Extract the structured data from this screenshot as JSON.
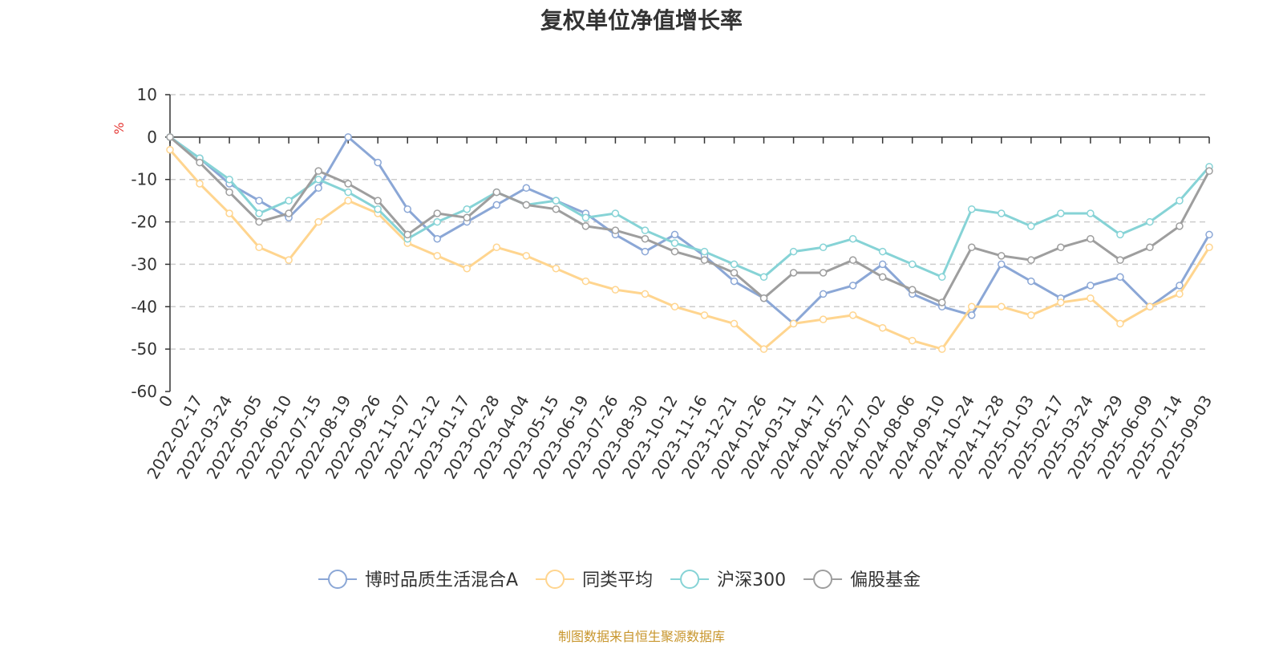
{
  "chart_data": {
    "type": "line",
    "title": "复权单位净值增长率",
    "ylabel": "%",
    "ylim": [
      -60,
      10
    ],
    "yticks": [
      10,
      0,
      -10,
      -20,
      -30,
      -40,
      -50,
      -60
    ],
    "xticks": [
      "0",
      "2022-02-17",
      "2022-03-24",
      "2022-05-05",
      "2022-06-10",
      "2022-07-15",
      "2022-08-19",
      "2022-09-26",
      "2022-11-07",
      "2022-12-12",
      "2023-01-17",
      "2023-02-28",
      "2023-04-04",
      "2023-05-15",
      "2023-06-19",
      "2023-07-26",
      "2023-08-30",
      "2023-10-12",
      "2023-11-16",
      "2023-12-21",
      "2024-01-26",
      "2024-03-11",
      "2024-04-17",
      "2024-05-27",
      "2024-07-02",
      "2024-08-06",
      "2024-09-10",
      "2024-10-24",
      "2024-11-28",
      "2025-01-03",
      "2025-02-17",
      "2025-03-24",
      "2025-04-29",
      "2025-06-09",
      "2025-07-14",
      "2025-09-03"
    ],
    "grid": true,
    "legend_position": "bottom",
    "series": [
      {
        "name": "博时品质生活混合A",
        "color": "#8ba7d6",
        "values": [
          0,
          -5,
          -11,
          -15,
          -19,
          -12,
          0,
          -6,
          -17,
          -24,
          -20,
          -16,
          -12,
          -15,
          -18,
          -23,
          -27,
          -23,
          -28,
          -34,
          -38,
          -44,
          -37,
          -35,
          -30,
          -37,
          -40,
          -42,
          -30,
          -34,
          -38,
          -35,
          -33,
          -40,
          -35,
          -23
        ]
      },
      {
        "name": "同类平均",
        "color": "#ffd58f",
        "values": [
          -3,
          -11,
          -18,
          -26,
          -29,
          -20,
          -15,
          -18,
          -25,
          -28,
          -31,
          -26,
          -28,
          -31,
          -34,
          -36,
          -37,
          -40,
          -42,
          -44,
          -50,
          -44,
          -43,
          -42,
          -45,
          -48,
          -50,
          -40,
          -40,
          -42,
          -39,
          -38,
          -44,
          -40,
          -37,
          -26
        ]
      },
      {
        "name": "沪深300",
        "color": "#86d3d6",
        "values": [
          0,
          -5,
          -10,
          -18,
          -15,
          -10,
          -13,
          -17,
          -24,
          -20,
          -17,
          -13,
          -16,
          -15,
          -19,
          -18,
          -22,
          -25,
          -27,
          -30,
          -33,
          -27,
          -26,
          -24,
          -27,
          -30,
          -33,
          -17,
          -18,
          -21,
          -18,
          -18,
          -23,
          -20,
          -15,
          -7
        ]
      },
      {
        "name": "偏股基金",
        "color": "#9e9e9e",
        "values": [
          0,
          -6,
          -13,
          -20,
          -18,
          -8,
          -11,
          -15,
          -23,
          -18,
          -19,
          -13,
          -16,
          -17,
          -21,
          -22,
          -24,
          -27,
          -29,
          -32,
          -38,
          -32,
          -32,
          -29,
          -33,
          -36,
          -39,
          -26,
          -28,
          -29,
          -26,
          -24,
          -29,
          -26,
          -21,
          -8
        ]
      }
    ]
  },
  "source": "制图数据来自恒生聚源数据库"
}
